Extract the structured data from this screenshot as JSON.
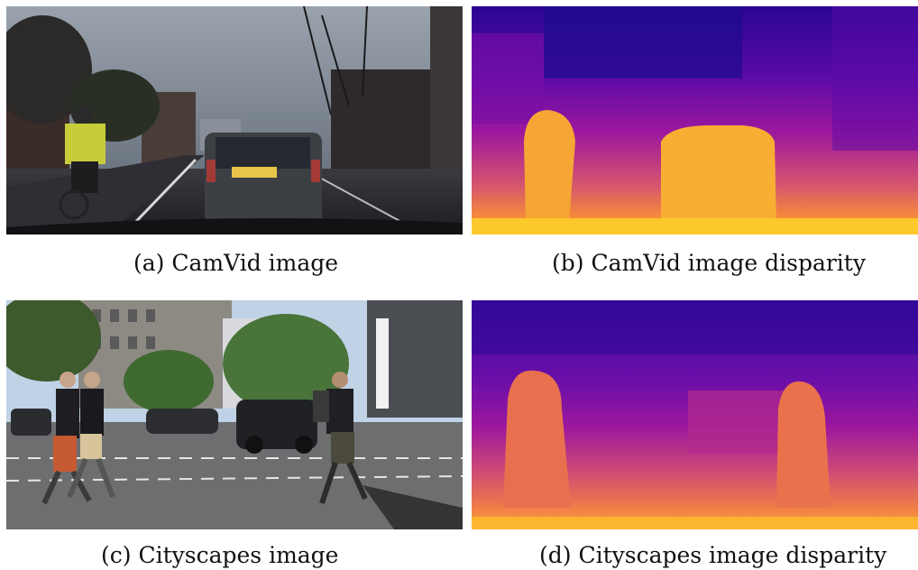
{
  "figure": {
    "panels": [
      {
        "label": "(a)",
        "caption": "CamVid image"
      },
      {
        "label": "(b)",
        "caption": "CamVid image disparity"
      },
      {
        "label": "(c)",
        "caption": "Cityscapes image"
      },
      {
        "label": "(d)",
        "caption": "Cityscapes image disparity"
      }
    ],
    "colormap": [
      "#0d0887",
      "#5c01a6",
      "#9c179e",
      "#cc4778",
      "#ed7953",
      "#fdb42f",
      "#f0f921"
    ]
  }
}
